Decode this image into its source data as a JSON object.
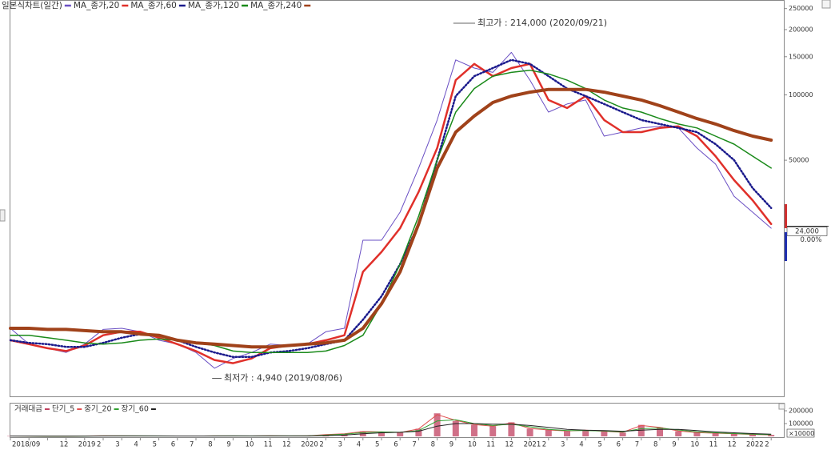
{
  "chart_data": [
    {
      "type": "line",
      "log_scale": true,
      "categories": [
        "2018/09",
        null,
        null,
        "12",
        "2019",
        "2",
        "3",
        "4",
        "5",
        "6",
        "7",
        "8",
        "9",
        "10",
        "11",
        "12",
        "2020",
        "2",
        "3",
        "4",
        "5",
        "6",
        "7",
        "8",
        "9",
        "10",
        "11",
        "12",
        "2021",
        "2",
        "3",
        "4",
        "5",
        "6",
        "7",
        "8",
        "9",
        "10",
        "11",
        "12",
        "2022",
        "2"
      ],
      "ylim": [
        4080,
        273800
      ],
      "yticks": [
        50000,
        100000,
        150000,
        200000,
        250000
      ],
      "series": [
        {
          "name": "일본식차트(일간)",
          "color": "#6a4fc4",
          "width": 1,
          "dash": "solid",
          "values": [
            8400,
            7100,
            6800,
            6500,
            7100,
            8300,
            8400,
            8100,
            7400,
            7100,
            6500,
            5500,
            6100,
            6500,
            7100,
            7000,
            7100,
            8100,
            8400,
            21400,
            21400,
            28800,
            46000,
            76600,
            145000,
            133000,
            127000,
            157000,
            117000,
            83300,
            90800,
            94700,
            64600,
            67400,
            70400,
            71600,
            70400,
            56900,
            48000,
            34100,
            28800,
            24300
          ]
        },
        {
          "name": "MA_종가,20",
          "color": "#e0302a",
          "width": 2.5,
          "dash": "solid",
          "values": [
            7400,
            7100,
            6800,
            6600,
            7000,
            7800,
            8100,
            8100,
            7600,
            7100,
            6600,
            6000,
            5800,
            6100,
            6800,
            7000,
            7100,
            7400,
            7800,
            15300,
            18900,
            24300,
            35700,
            56900,
            117000,
            139000,
            122000,
            133000,
            139000,
            94700,
            87000,
            98800,
            76600,
            67400,
            67400,
            70400,
            71600,
            64600,
            52200,
            40500,
            32700,
            25400
          ]
        },
        {
          "name": "MA_종가,60",
          "color": "#1a1a8c",
          "width": 2.5,
          "dash": "dotted",
          "values": [
            7400,
            7200,
            7100,
            6900,
            6900,
            7200,
            7600,
            7900,
            7800,
            7400,
            6900,
            6500,
            6200,
            6200,
            6500,
            6600,
            6800,
            7100,
            7400,
            9200,
            11800,
            16600,
            25400,
            50100,
            98800,
            122000,
            133000,
            145000,
            139000,
            122000,
            107000,
            98800,
            90800,
            83300,
            76600,
            73400,
            70400,
            67400,
            59300,
            50100,
            37200,
            30100
          ]
        },
        {
          "name": "MA_종가,120",
          "color": "#1a8a1a",
          "width": 1.5,
          "dash": "solid",
          "values": [
            7800,
            7800,
            7600,
            7400,
            7200,
            7100,
            7200,
            7400,
            7500,
            7400,
            7200,
            7000,
            6600,
            6500,
            6500,
            6500,
            6500,
            6600,
            7000,
            7800,
            10900,
            16600,
            27600,
            50100,
            83300,
            107000,
            122000,
            127000,
            130000,
            125000,
            117000,
            107000,
            94700,
            87000,
            83300,
            77800,
            73400,
            70400,
            64600,
            59300,
            52200,
            46000
          ]
        },
        {
          "name": "MA_종가,240",
          "color": "#a0421a",
          "width": 4,
          "dash": "solid",
          "values": [
            8400,
            8400,
            8300,
            8300,
            8200,
            8100,
            8100,
            7900,
            7800,
            7400,
            7200,
            7100,
            7000,
            6900,
            6900,
            7000,
            7100,
            7200,
            7400,
            8400,
            10900,
            15300,
            25400,
            46000,
            67400,
            79900,
            92300,
            98800,
            103000,
            106000,
            106000,
            106000,
            103000,
            98800,
            94700,
            89200,
            83300,
            77800,
            73400,
            68500,
            64600,
            61900
          ]
        }
      ],
      "annotations": [
        {
          "label": "최고가 : 214,000 (2020/09/21)",
          "value": 214000,
          "color": "#d02020"
        },
        {
          "label": "최저가 : 4,940 (2019/08/06)",
          "value": 4940,
          "color": "#2030a0"
        }
      ],
      "last_price": {
        "value": 24000,
        "label": "24,000"
      },
      "change": {
        "value": 0,
        "label": "0.00%"
      }
    },
    {
      "type": "bar",
      "title": "거래대금",
      "color": "#c04060",
      "ylim": [
        0,
        250000
      ],
      "yticks": [
        100000,
        200000
      ],
      "unit_label": "×10000",
      "values": [
        3000,
        2000,
        2000,
        2000,
        3000,
        5000,
        4000,
        3000,
        3000,
        3000,
        3000,
        4000,
        3000,
        3000,
        5000,
        3000,
        4000,
        15000,
        20000,
        40000,
        35000,
        30000,
        60000,
        180000,
        120000,
        90000,
        80000,
        110000,
        60000,
        50000,
        40000,
        50000,
        40000,
        30000,
        90000,
        70000,
        40000,
        30000,
        25000,
        20000,
        15000,
        12000
      ],
      "series": [
        {
          "name": "단기_5",
          "color": "#e05050",
          "values": [
            3000,
            2500,
            2000,
            2000,
            3000,
            4500,
            4000,
            3000,
            3000,
            3000,
            3000,
            4000,
            3000,
            3000,
            4500,
            3000,
            4000,
            14000,
            20000,
            38000,
            35000,
            30000,
            58000,
            170000,
            125000,
            92000,
            80000,
            105000,
            62000,
            50000,
            42000,
            48000,
            40000,
            32000,
            85000,
            70000,
            42000,
            30000,
            25000,
            20000,
            15000,
            12000
          ]
        },
        {
          "name": "중기_20",
          "color": "#30a030",
          "values": [
            3000,
            2500,
            2000,
            2000,
            2500,
            4000,
            4000,
            3500,
            3000,
            3000,
            3000,
            3500,
            3500,
            3000,
            4000,
            3500,
            4000,
            10000,
            17000,
            30000,
            35000,
            32000,
            45000,
            120000,
            130000,
            100000,
            85000,
            95000,
            75000,
            55000,
            45000,
            45000,
            42000,
            35000,
            60000,
            65000,
            50000,
            35000,
            28000,
            22000,
            17000,
            13000
          ]
        },
        {
          "name": "장기_60",
          "color": "#222222",
          "values": [
            3000,
            3000,
            2500,
            2500,
            2500,
            3000,
            3500,
            3500,
            3500,
            3000,
            3000,
            3000,
            3500,
            3500,
            3500,
            3500,
            3500,
            6000,
            10000,
            20000,
            28000,
            32000,
            40000,
            80000,
            100000,
            100000,
            95000,
            95000,
            85000,
            70000,
            55000,
            48000,
            45000,
            40000,
            48000,
            55000,
            55000,
            45000,
            35000,
            28000,
            22000,
            17000
          ]
        }
      ]
    }
  ]
}
